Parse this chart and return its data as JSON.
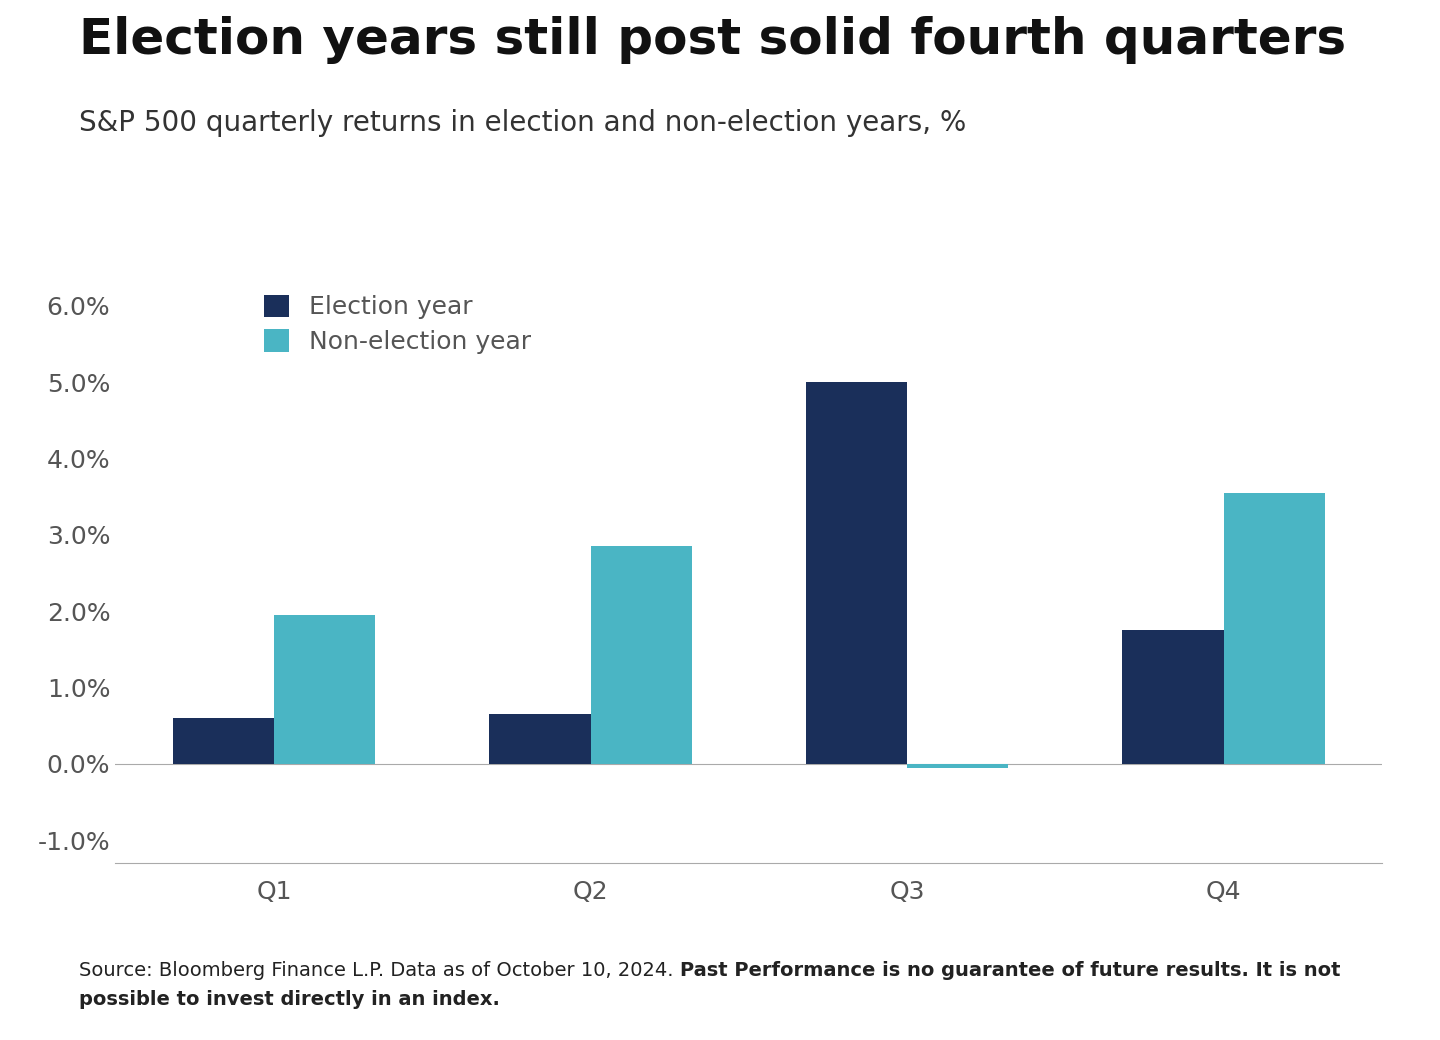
{
  "title": "Election years still post solid fourth quarters",
  "subtitle": "S&P 500 quarterly returns in election and non-election years, %",
  "categories": [
    "Q1",
    "Q2",
    "Q3",
    "Q4"
  ],
  "election_year": [
    0.006,
    0.0065,
    0.05,
    0.0175
  ],
  "non_election_year": [
    0.0195,
    0.0285,
    -0.0005,
    0.0355
  ],
  "election_color": "#1a2f5a",
  "non_election_color": "#4ab5c4",
  "legend_election": "Election year",
  "legend_non_election": "Non-election year",
  "ylim": [
    -0.013,
    0.066
  ],
  "yticks": [
    -0.01,
    0.0,
    0.01,
    0.02,
    0.03,
    0.04,
    0.05,
    0.06
  ],
  "footnote_normal": "Source: Bloomberg Finance L.P. Data as of October 10, 2024. ",
  "footnote_bold_1": "Past Performance is no guarantee of future results. It is not",
  "footnote_bold_2": "possible to invest directly in an index.",
  "background_color": "#ffffff",
  "bar_width": 0.32,
  "title_fontsize": 36,
  "subtitle_fontsize": 20,
  "tick_fontsize": 18,
  "legend_fontsize": 18,
  "footnote_fontsize": 14,
  "axis_color": "#aaaaaa",
  "tick_color": "#555555"
}
